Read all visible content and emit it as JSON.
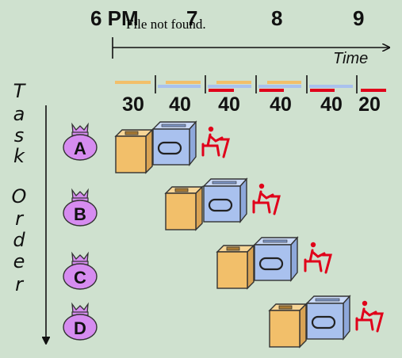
{
  "header": {
    "hours": [
      "6 PM",
      "7",
      "8",
      "9"
    ],
    "overlay_text": "File not found.",
    "axis_label": "Time"
  },
  "durations": [
    "30",
    "40",
    "40",
    "40",
    "40",
    "20"
  ],
  "side_label": [
    "T",
    "a",
    "s",
    "k",
    "",
    "O",
    "r",
    "d",
    "e",
    "r"
  ],
  "tasks": [
    "A",
    "B",
    "C",
    "D"
  ],
  "colors": {
    "background": "#cfe1cf",
    "washer": "#f2bf6a",
    "dryer": "#a9c1ee",
    "folder": "#e0001a",
    "bag": "#d68cf0"
  },
  "icons": {
    "washer": "washer-icon",
    "dryer": "dryer-icon",
    "folder": "person-folding-icon",
    "bag": "laundry-bag-icon"
  }
}
